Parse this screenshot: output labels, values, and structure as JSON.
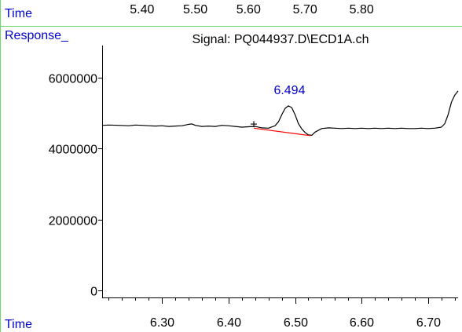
{
  "chart_data": {
    "type": "line",
    "signal_title": "Signal: PQ044937.D\\ECD1A.ch",
    "y_axis_label": "Response_",
    "x_axis_label": "Time",
    "top_axis_label": "Time",
    "y_ticks": [
      0,
      2000000,
      4000000,
      6000000
    ],
    "y_tick_labels": [
      "0",
      "2000000",
      "4000000",
      "6000000"
    ],
    "y_range": [
      -200000,
      6900000
    ],
    "x_range": [
      6.21,
      6.745
    ],
    "x_ticks": [
      6.3,
      6.4,
      6.5,
      6.6,
      6.7
    ],
    "x_tick_labels": [
      "6.30",
      "6.40",
      "6.50",
      "6.60",
      "6.70"
    ],
    "x_minor_step": 0.02,
    "top_ticks": [
      5.4,
      5.5,
      5.6,
      5.7,
      5.8
    ],
    "top_tick_labels": [
      "5.40",
      "5.50",
      "5.60",
      "5.70",
      "5.80"
    ],
    "top_tick_x_equiv": [
      6.27,
      6.35,
      6.43,
      6.515,
      6.6
    ],
    "peak_label": "6.494",
    "peak_label_position": {
      "x": 6.494,
      "y": 5350000
    },
    "start_marker": {
      "symbol": "+",
      "x": 6.438,
      "y": 4700000
    },
    "baseline_segment": {
      "x": [
        6.438,
        6.523
      ],
      "y": [
        4570000,
        4360000
      ],
      "color": "#ff0000"
    },
    "series": [
      {
        "color": "#000000",
        "x": [
          6.21,
          6.22,
          6.235,
          6.25,
          6.26,
          6.27,
          6.28,
          6.29,
          6.3,
          6.31,
          6.32,
          6.33,
          6.34,
          6.345,
          6.35,
          6.36,
          6.37,
          6.38,
          6.39,
          6.4,
          6.41,
          6.42,
          6.43,
          6.44,
          6.45,
          6.46,
          6.47,
          6.475,
          6.48,
          6.485,
          6.49,
          6.495,
          6.5,
          6.505,
          6.51,
          6.515,
          6.52,
          6.525,
          6.53,
          6.54,
          6.55,
          6.56,
          6.57,
          6.58,
          6.59,
          6.6,
          6.61,
          6.62,
          6.63,
          6.64,
          6.65,
          6.66,
          6.67,
          6.68,
          6.69,
          6.7,
          6.71,
          6.72,
          6.725,
          6.73,
          6.735,
          6.74,
          6.745
        ],
        "y": [
          4650000,
          4660000,
          4650000,
          4640000,
          4660000,
          4650000,
          4640000,
          4630000,
          4640000,
          4620000,
          4630000,
          4640000,
          4680000,
          4690000,
          4650000,
          4620000,
          4630000,
          4620000,
          4650000,
          4640000,
          4620000,
          4600000,
          4610000,
          4620000,
          4580000,
          4570000,
          4640000,
          4750000,
          4950000,
          5130000,
          5200000,
          5150000,
          4950000,
          4700000,
          4550000,
          4450000,
          4380000,
          4370000,
          4460000,
          4560000,
          4580000,
          4570000,
          4560000,
          4570000,
          4560000,
          4570000,
          4560000,
          4570000,
          4560000,
          4570000,
          4560000,
          4570000,
          4560000,
          4560000,
          4570000,
          4560000,
          4570000,
          4600000,
          4700000,
          4950000,
          5300000,
          5500000,
          5620000
        ]
      }
    ]
  }
}
